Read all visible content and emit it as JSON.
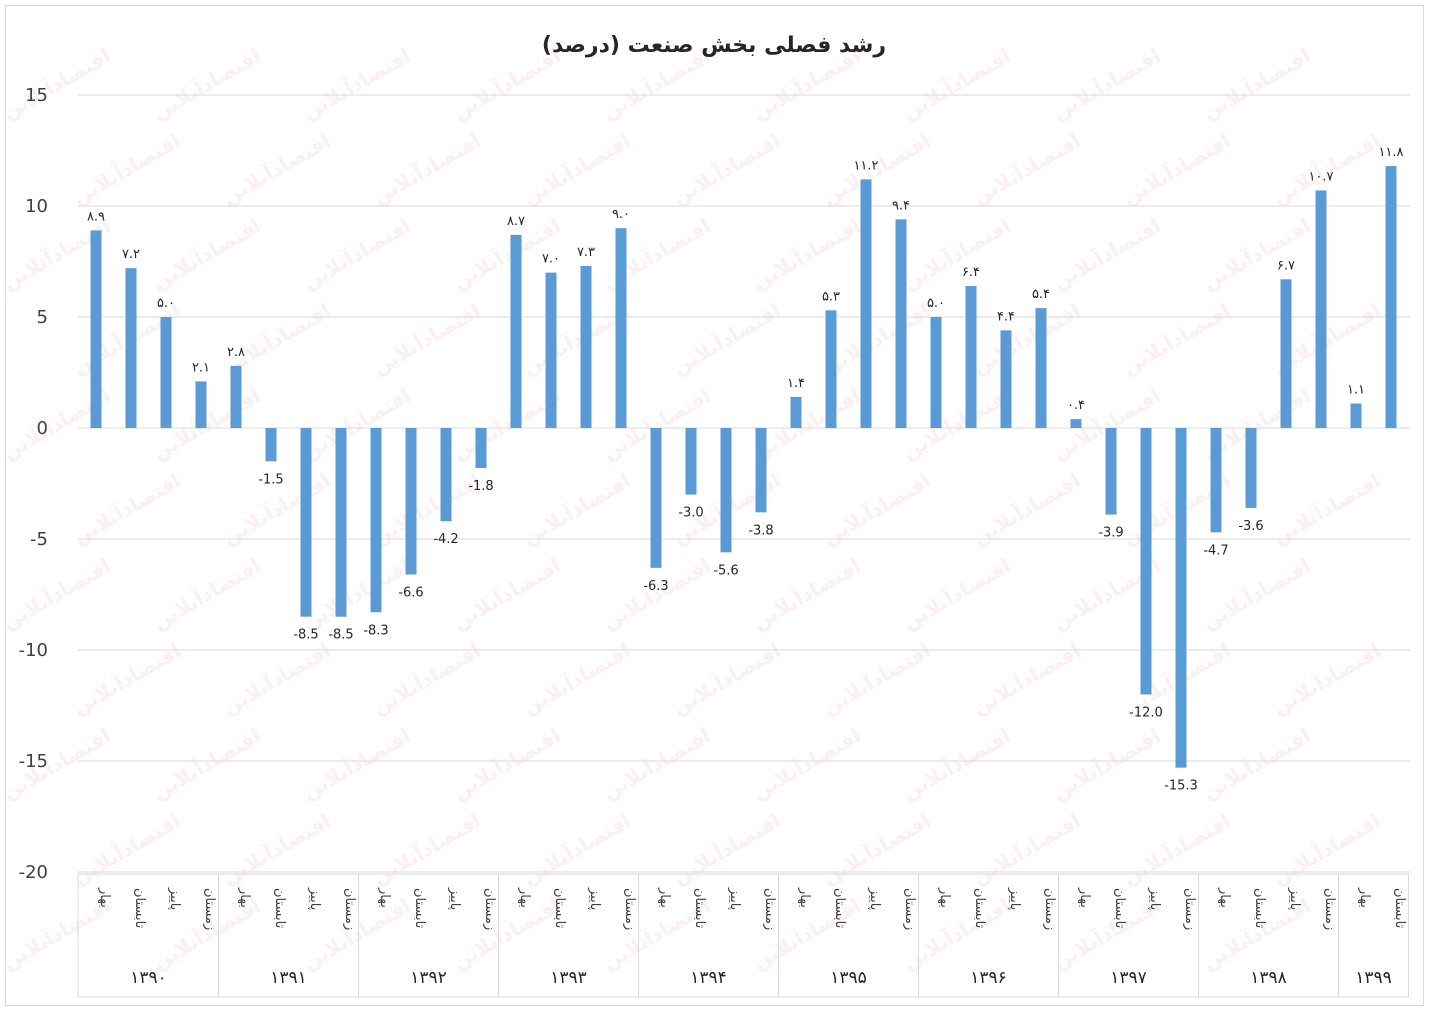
{
  "chart_data": {
    "type": "bar",
    "title": "رشد فصلی بخش صنعت (درصد)",
    "xlabel": "",
    "ylabel": "",
    "ylim": [
      -20,
      15
    ],
    "yticks": [
      15,
      10,
      5,
      0,
      -5,
      -10,
      -15,
      -20
    ],
    "ytick_labels": [
      "15",
      "10",
      "5",
      "0",
      "-5",
      "-10",
      "-15",
      "-20"
    ],
    "grid": true,
    "bar_color": "#5b9bd5",
    "groups": [
      {
        "year": "۱۳۹۰",
        "quarters": [
          "بهار",
          "تابستان",
          "پاییز",
          "زمستان"
        ],
        "values": [
          8.9,
          7.2,
          5.0,
          2.1
        ],
        "labels": [
          "۸.۹",
          "۷.۲",
          "۵.۰",
          "۲.۱"
        ]
      },
      {
        "year": "۱۳۹۱",
        "quarters": [
          "بهار",
          "تابستان",
          "پاییز",
          "زمستان"
        ],
        "values": [
          2.8,
          -1.5,
          -8.5,
          -8.5
        ],
        "labels": [
          "۲.۸",
          "-1.5",
          "-8.5",
          "-8.5"
        ]
      },
      {
        "year": "۱۳۹۲",
        "quarters": [
          "بهار",
          "تابستان",
          "پاییز",
          "زمستان"
        ],
        "values": [
          -8.3,
          -6.6,
          -4.2,
          -1.8
        ],
        "labels": [
          "-8.3",
          "-6.6",
          "-4.2",
          "-1.8"
        ]
      },
      {
        "year": "۱۳۹۳",
        "quarters": [
          "بهار",
          "تابستان",
          "پاییز",
          "زمستان"
        ],
        "values": [
          8.7,
          7.0,
          7.3,
          9.0
        ],
        "labels": [
          "۸.۷",
          "۷.۰",
          "۷.۳",
          "۹.۰"
        ]
      },
      {
        "year": "۱۳۹۴",
        "quarters": [
          "بهار",
          "تابستان",
          "پاییز",
          "زمستان"
        ],
        "values": [
          -6.3,
          -3.0,
          -5.6,
          -3.8
        ],
        "labels": [
          "-6.3",
          "-3.0",
          "-5.6",
          "-3.8"
        ]
      },
      {
        "year": "۱۳۹۵",
        "quarters": [
          "بهار",
          "تابستان",
          "پاییز",
          "زمستان"
        ],
        "values": [
          1.4,
          5.3,
          11.2,
          9.4
        ],
        "labels": [
          "۱.۴",
          "۵.۳",
          "۱۱.۲",
          "۹.۴"
        ]
      },
      {
        "year": "۱۳۹۶",
        "quarters": [
          "بهار",
          "تابستان",
          "پاییز",
          "زمستان"
        ],
        "values": [
          5.0,
          6.4,
          4.4,
          5.4
        ],
        "labels": [
          "۵.۰",
          "۶.۴",
          "۴.۴",
          "۵.۴"
        ]
      },
      {
        "year": "۱۳۹۷",
        "quarters": [
          "بهار",
          "تابستان",
          "پاییز",
          "زمستان"
        ],
        "values": [
          0.4,
          -3.9,
          -12.0,
          -15.3
        ],
        "labels": [
          "۰.۴",
          "-3.9",
          "-12.0",
          "-15.3"
        ]
      },
      {
        "year": "۱۳۹۸",
        "quarters": [
          "بهار",
          "تابستان",
          "پاییز",
          "زمستان"
        ],
        "values": [
          -4.7,
          -3.6,
          6.7,
          10.7
        ],
        "labels": [
          "-4.7",
          "-3.6",
          "۶.۷",
          "۱۰.۷"
        ]
      },
      {
        "year": "۱۳۹۹",
        "quarters": [
          "بهار",
          "تابستان"
        ],
        "values": [
          1.1,
          11.8
        ],
        "labels": [
          "۱.۱",
          "۱۱.۸"
        ]
      }
    ]
  },
  "watermark": "اقتصادآنلاین"
}
